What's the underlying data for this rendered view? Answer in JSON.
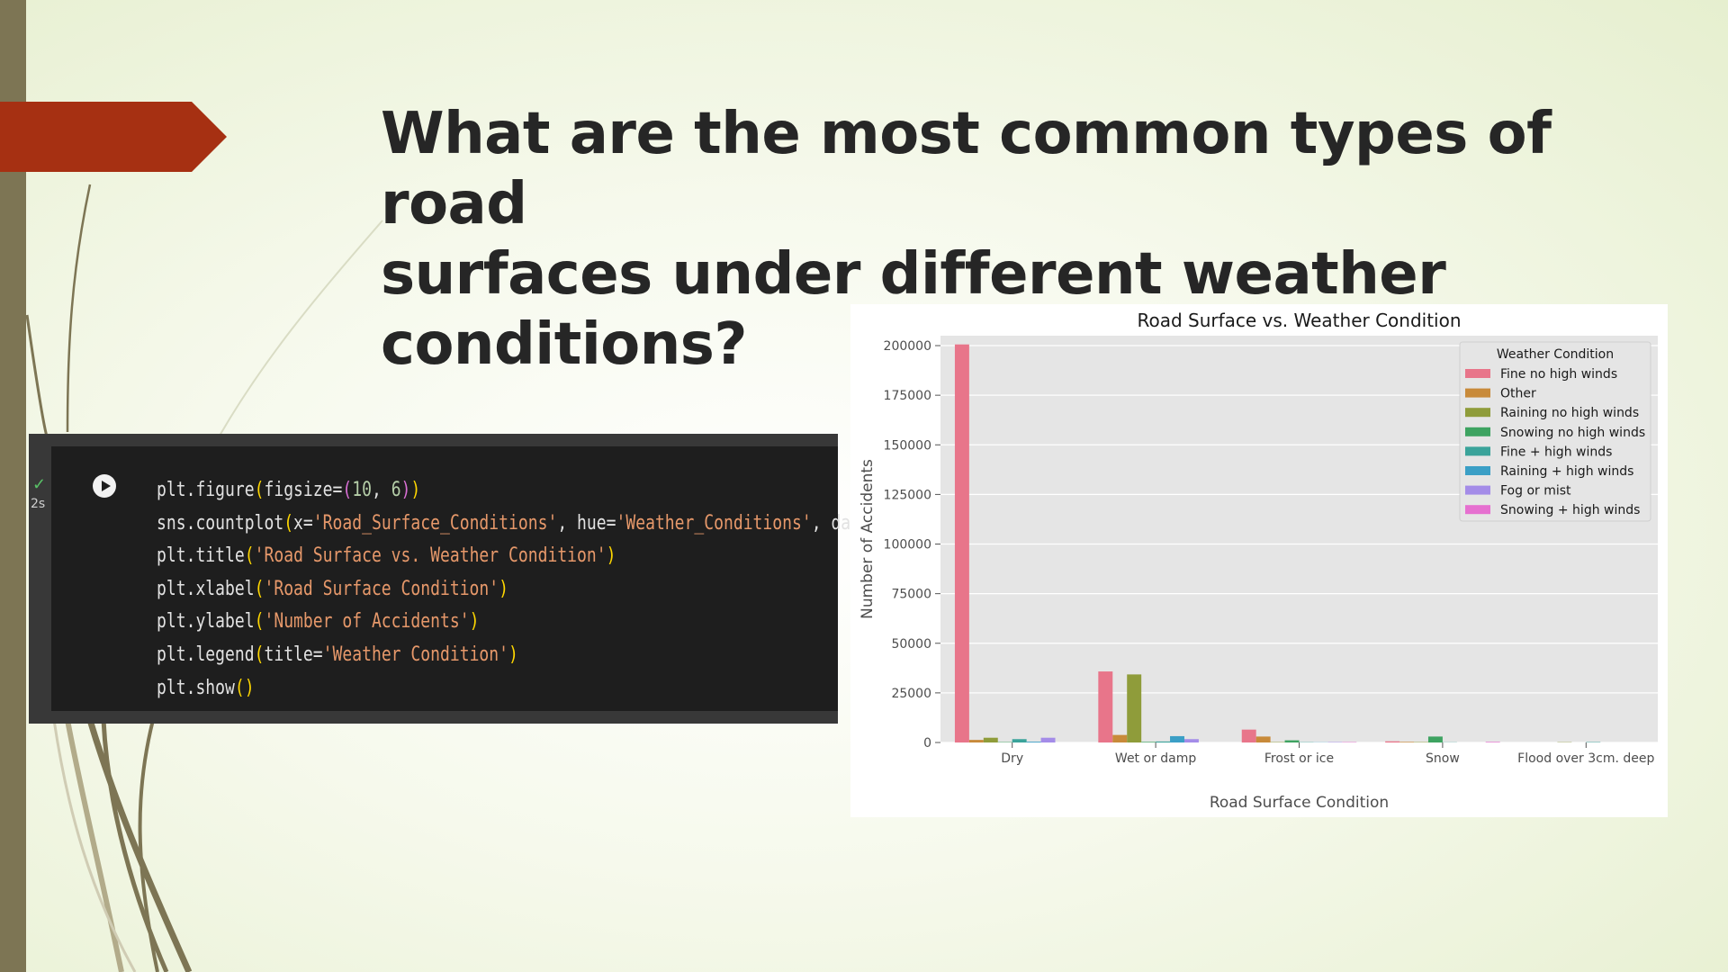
{
  "slide": {
    "title_line1": "What are the most common types of road",
    "title_line2": "surfaces under different weather conditions?"
  },
  "code_cell": {
    "status_icon": "check-icon",
    "runtime": "2s",
    "run_icon": "play-icon",
    "lines": [
      "plt.figure(figsize=(10, 6))",
      "sns.countplot(x='Road_Surface_Conditions', hue='Weather_Conditions', data=df)",
      "plt.title('Road Surface vs. Weather Condition')",
      "plt.xlabel('Road Surface Condition')",
      "plt.ylabel('Number of Accidents')",
      "plt.legend(title='Weather Condition')",
      "plt.show()"
    ]
  },
  "colors": {
    "accent_banner": "#a63012",
    "left_strip": "#7d7554",
    "plot_bg": "#e5e5e5"
  },
  "chart_data": {
    "type": "bar",
    "title": "Road Surface vs. Weather Condition",
    "xlabel": "Road Surface Condition",
    "ylabel": "Number of Accidents",
    "ylim": [
      0,
      205000
    ],
    "yticks": [
      0,
      25000,
      50000,
      75000,
      100000,
      125000,
      150000,
      175000,
      200000
    ],
    "grid": true,
    "legend_position": "top-right",
    "legend_title": "Weather Condition",
    "categories": [
      "Dry",
      "Wet or damp",
      "Frost or ice",
      "Snow",
      "Flood over 3cm. deep"
    ],
    "series": [
      {
        "name": "Fine no high winds",
        "color": "#e8758a",
        "values": [
          200600,
          35800,
          6500,
          600,
          0
        ]
      },
      {
        "name": "Other",
        "color": "#c88a3a",
        "values": [
          1300,
          3800,
          3000,
          300,
          0
        ]
      },
      {
        "name": "Raining no high winds",
        "color": "#8f9c3a",
        "values": [
          2400,
          34300,
          200,
          200,
          150
        ]
      },
      {
        "name": "Snowing no high winds",
        "color": "#3ea361",
        "values": [
          200,
          300,
          1100,
          3000,
          0
        ]
      },
      {
        "name": "Fine + high winds",
        "color": "#3aa39a",
        "values": [
          1700,
          500,
          150,
          100,
          200
        ]
      },
      {
        "name": "Raining + high winds",
        "color": "#3b9fc6",
        "values": [
          400,
          3200,
          100,
          0,
          0
        ]
      },
      {
        "name": "Fog or mist",
        "color": "#a48ce8",
        "values": [
          2400,
          1700,
          200,
          0,
          0
        ]
      },
      {
        "name": "Snowing + high winds",
        "color": "#e670d0",
        "values": [
          0,
          0,
          200,
          300,
          0
        ]
      }
    ]
  }
}
